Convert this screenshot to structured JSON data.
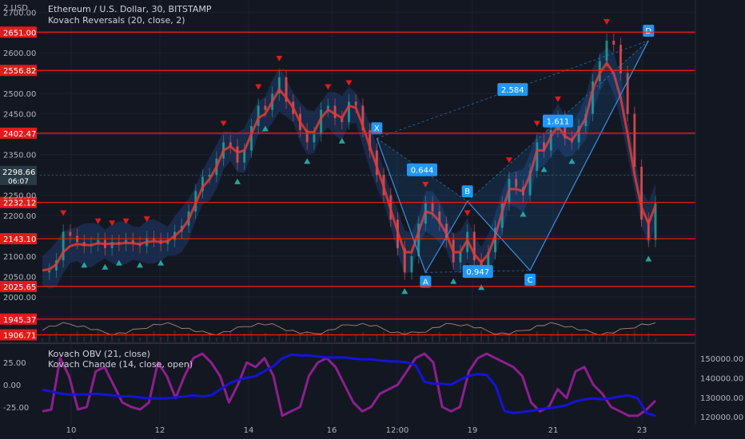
{
  "header": {
    "title": "Ethereum / U.S. Dollar, 30, BITSTAMP",
    "indicator": "Kovach Reversals (20, close, 2)",
    "lower_indicators": [
      "Kovach OBV (21, close)",
      "Kovach Chande (14, close, open)"
    ],
    "currency_label": "2 USD"
  },
  "colors": {
    "background": "#131722",
    "grid": "#1e2230",
    "level_line": "#ff1a1a",
    "price_badge": "#e01b1b",
    "current_price_badge": "#2a3a45",
    "pattern_label": "#2196f3",
    "ma_line": "#e53935",
    "band_fill": "#1f3b6b",
    "obv_line": "#1414d6",
    "chande_line": "#8e1f8f",
    "up_marker": "#26a69a",
    "down_marker": "#e01b1b"
  },
  "chart_data": [
    {
      "type": "line",
      "title": "Ethereum / U.S. Dollar, 30, BITSTAMP",
      "x_ticks": [
        "10",
        "12",
        "14",
        "16",
        "12:00",
        "19",
        "21",
        "23"
      ],
      "ylim": [
        1890,
        2730
      ],
      "y_ticks": [
        "2700.00",
        "2650.00",
        "2600.00",
        "2550.00",
        "2500.00",
        "2450.00",
        "2400.00",
        "2350.00",
        "2300.00",
        "2250.00",
        "2200.00",
        "2150.00",
        "2100.00",
        "2050.00",
        "2000.00",
        "1950.00"
      ],
      "price_levels": [
        2651.0,
        2556.82,
        2402.47,
        2232.12,
        2143.1,
        2025.65,
        1945.37,
        1906.71
      ],
      "price_level_labels": [
        "2651.00",
        "2556.82",
        "2402.47",
        "2232.12",
        "2143.10",
        "2025.65",
        "1945.37",
        "1906.71"
      ],
      "current_price": {
        "value": 2298.66,
        "label": "2298.66",
        "countdown": "06:07"
      },
      "series": [
        {
          "x": [
            0,
            3,
            6,
            9,
            12,
            15,
            18,
            21,
            24,
            27,
            30,
            33,
            36,
            39,
            42,
            45,
            48,
            51,
            54,
            57,
            60,
            63,
            66,
            69,
            72,
            75,
            78,
            81,
            84,
            87,
            90,
            93,
            96,
            99,
            102,
            105,
            108,
            111,
            114,
            117,
            120,
            123,
            126,
            129,
            132,
            135,
            138,
            141,
            144,
            147,
            150,
            153,
            156,
            159,
            162,
            165,
            168,
            171,
            174,
            177,
            180,
            183,
            186,
            189,
            192,
            195,
            198,
            201,
            204,
            207,
            210,
            213,
            216,
            219,
            222,
            225,
            228,
            231,
            234,
            237,
            240,
            243,
            246,
            249,
            252,
            255,
            258,
            261,
            264
          ],
          "values": [
            2060,
            2065,
            2090,
            2160,
            2150,
            2135,
            2125,
            2130,
            2140,
            2120,
            2135,
            2130,
            2140,
            2130,
            2125,
            2145,
            2140,
            2130,
            2140,
            2160,
            2175,
            2210,
            2260,
            2295,
            2300,
            2340,
            2380,
            2370,
            2330,
            2360,
            2420,
            2470,
            2460,
            2500,
            2540,
            2480,
            2450,
            2410,
            2380,
            2400,
            2460,
            2470,
            2440,
            2430,
            2480,
            2470,
            2410,
            2360,
            2300,
            2250,
            2190,
            2120,
            2060,
            2100,
            2180,
            2230,
            2210,
            2180,
            2140,
            2085,
            2110,
            2160,
            2090,
            2070,
            2110,
            2170,
            2230,
            2290,
            2270,
            2250,
            2310,
            2380,
            2360,
            2410,
            2440,
            2390,
            2380,
            2420,
            2450,
            2530,
            2580,
            2630,
            2620,
            2550,
            2450,
            2320,
            2190,
            2140,
            2230
          ],
          "ma": [
            2065,
            2068,
            2080,
            2110,
            2125,
            2130,
            2128,
            2127,
            2132,
            2130,
            2131,
            2131,
            2133,
            2132,
            2130,
            2135,
            2137,
            2135,
            2137,
            2150,
            2165,
            2190,
            2230,
            2270,
            2290,
            2320,
            2360,
            2370,
            2355,
            2360,
            2400,
            2440,
            2450,
            2480,
            2510,
            2490,
            2465,
            2430,
            2405,
            2405,
            2440,
            2460,
            2450,
            2440,
            2470,
            2465,
            2420,
            2370,
            2320,
            2270,
            2215,
            2160,
            2110,
            2110,
            2160,
            2210,
            2205,
            2185,
            2155,
            2110,
            2110,
            2140,
            2105,
            2085,
            2105,
            2150,
            2210,
            2265,
            2265,
            2260,
            2300,
            2360,
            2360,
            2395,
            2420,
            2395,
            2385,
            2410,
            2440,
            2510,
            2550,
            2575,
            2550,
            2490,
            2400,
            2300,
            2220,
            2180,
            2225
          ]
        }
      ],
      "harmonic_pattern": {
        "points": [
          {
            "label": "X",
            "value": 2390
          },
          {
            "label": "A",
            "value": 2060
          },
          {
            "label": "B",
            "value": 2235
          },
          {
            "label": "C",
            "value": 2065
          },
          {
            "label": "D",
            "value": 2630
          }
        ],
        "ratios": [
          "0.644",
          "0.947",
          "1.611",
          "2.584"
        ]
      }
    },
    {
      "type": "line",
      "title": "Kovach OBV (21, close) / Kovach Chande (14, close, open)",
      "left_ticks": [
        "25.00",
        "0.00",
        "-25.00"
      ],
      "left_range": [
        -45,
        45
      ],
      "right_ticks": [
        "150000.00",
        "140000.00",
        "130000.00",
        "120000.00"
      ],
      "right_range": [
        116000,
        157000
      ],
      "series": [
        {
          "name": "Kovach OBV (21, close)",
          "values": [
            134000,
            133000,
            132000,
            131500,
            131500,
            131600,
            131800,
            131500,
            131000,
            130500,
            130500,
            130000,
            129500,
            129500,
            129500,
            130000,
            130500,
            131000,
            130500,
            131000,
            134000,
            137000,
            139000,
            140000,
            141000,
            143500,
            146000,
            150000,
            152000,
            151500,
            151500,
            151000,
            150500,
            150500,
            150500,
            150000,
            149500,
            149500,
            149000,
            148500,
            148500,
            148000,
            146500,
            138000,
            137000,
            137000,
            136500,
            139000,
            141000,
            142000,
            141500,
            136000,
            123000,
            122000,
            122500,
            123000,
            124000,
            124500,
            125000,
            126000,
            128000,
            129000,
            129500,
            129000,
            129500,
            130500,
            131000,
            129500,
            122000,
            120500
          ]
        },
        {
          "name": "Kovach Chande (14, close, open)",
          "values": [
            -30,
            -28,
            30,
            10,
            -28,
            -25,
            15,
            20,
            0,
            -20,
            -25,
            -28,
            -20,
            25,
            10,
            -15,
            10,
            30,
            35,
            25,
            10,
            -20,
            0,
            25,
            20,
            30,
            10,
            -35,
            -30,
            -25,
            10,
            25,
            30,
            20,
            0,
            -20,
            -30,
            -25,
            -10,
            -5,
            0,
            15,
            30,
            35,
            25,
            -25,
            -30,
            -25,
            15,
            30,
            35,
            30,
            25,
            20,
            10,
            -20,
            -30,
            -25,
            -5,
            -15,
            15,
            20,
            0,
            -10,
            -25,
            -30,
            -35,
            -35,
            -28,
            -18
          ]
        }
      ]
    }
  ]
}
